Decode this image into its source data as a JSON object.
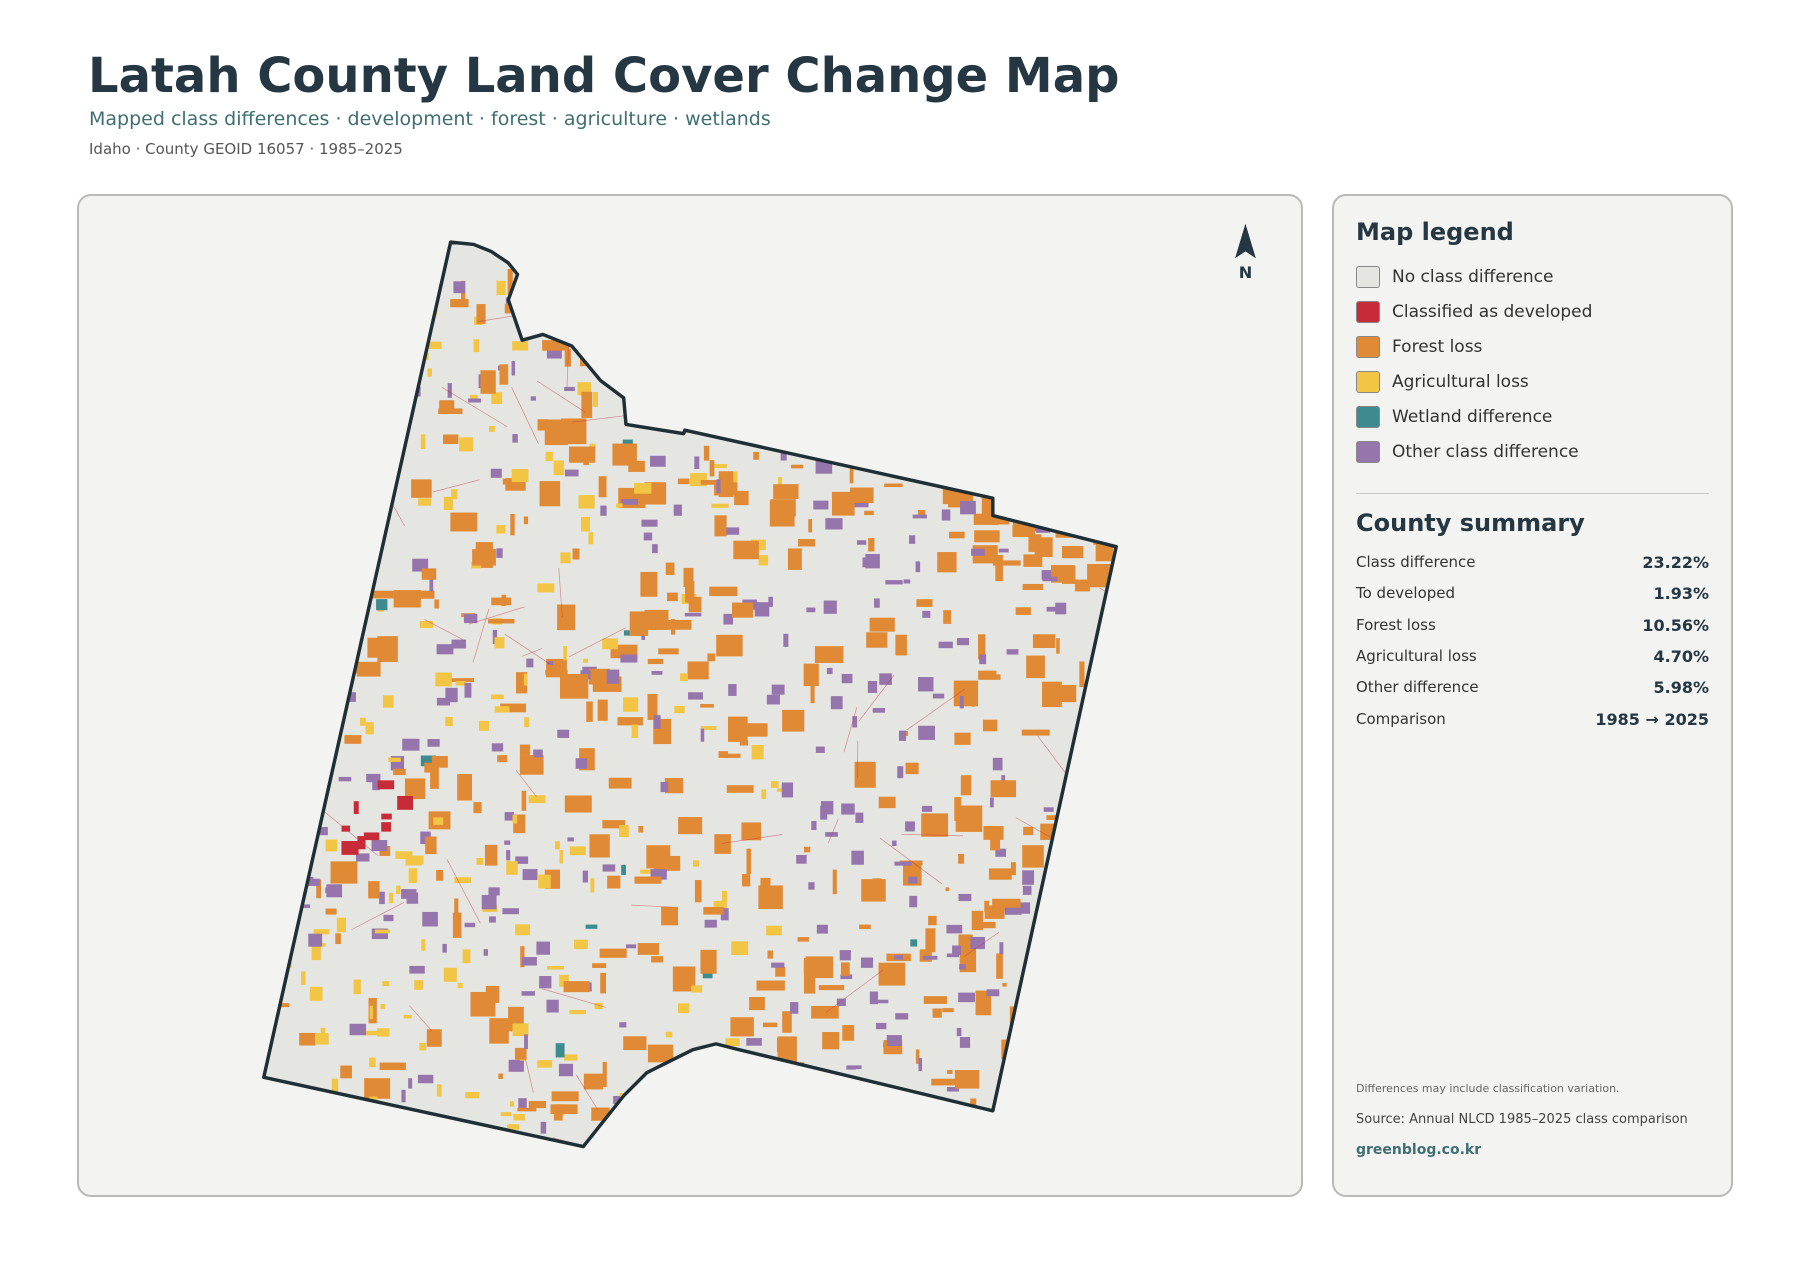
{
  "header": {
    "title": "Latah County Land Cover Change Map",
    "subtitle": "Mapped class differences · development · forest · agriculture · wetlands",
    "meta": "Idaho · County GEOID 16057 · 1985–2025"
  },
  "map": {
    "north_label": "N"
  },
  "legend": {
    "title": "Map legend",
    "items": [
      {
        "label": "No class difference",
        "color": "#e5e5e2"
      },
      {
        "label": "Classified as developed",
        "color": "#c82b38"
      },
      {
        "label": "Forest loss",
        "color": "#e08a35"
      },
      {
        "label": "Agricultural loss",
        "color": "#f2c544"
      },
      {
        "label": "Wetland difference",
        "color": "#3d8b8f"
      },
      {
        "label": "Other class difference",
        "color": "#9674ac"
      }
    ]
  },
  "summary": {
    "title": "County summary",
    "rows": [
      [
        "Class difference",
        "23.22%"
      ],
      [
        "To developed",
        "1.93%"
      ],
      [
        "Forest loss",
        "10.56%"
      ],
      [
        "Agricultural loss",
        "4.70%"
      ],
      [
        "Other difference",
        "5.98%"
      ],
      [
        "Comparison",
        "1985 → 2025"
      ]
    ]
  },
  "footer": {
    "note": "Differences may include classification variation.",
    "source": "Source: Annual NLCD 1985–2025 class comparison",
    "site": "greenblog.co.kr"
  }
}
